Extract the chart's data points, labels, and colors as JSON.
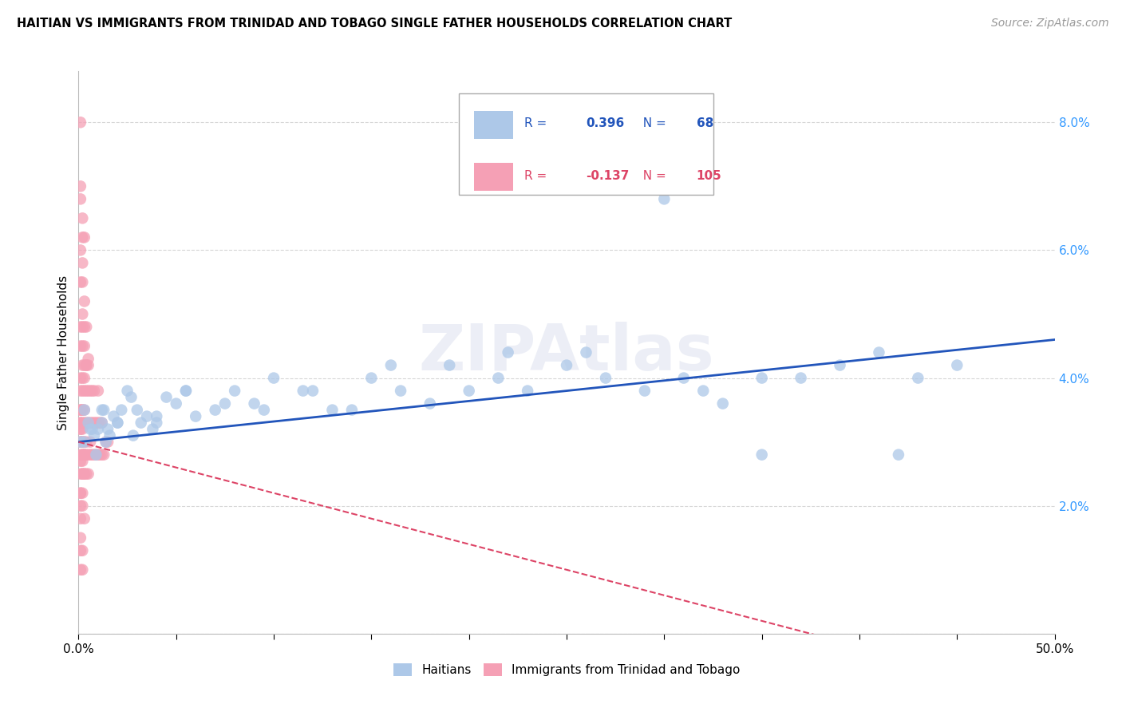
{
  "title": "HAITIAN VS IMMIGRANTS FROM TRINIDAD AND TOBAGO SINGLE FATHER HOUSEHOLDS CORRELATION CHART",
  "source": "Source: ZipAtlas.com",
  "ylabel": "Single Father Households",
  "xlim": [
    0,
    0.5
  ],
  "ylim": [
    0,
    0.088
  ],
  "blue_R": 0.396,
  "blue_N": 68,
  "pink_R": -0.137,
  "pink_N": 105,
  "blue_color": "#adc8e8",
  "pink_color": "#f5a0b5",
  "blue_line_color": "#2255bb",
  "pink_line_color": "#dd4466",
  "legend_label_blue": "Haitians",
  "legend_label_pink": "Immigrants from Trinidad and Tobago",
  "watermark": "ZIPAtlas",
  "blue_points_x": [
    0.001,
    0.003,
    0.005,
    0.007,
    0.008,
    0.009,
    0.01,
    0.012,
    0.013,
    0.014,
    0.015,
    0.016,
    0.018,
    0.02,
    0.022,
    0.025,
    0.027,
    0.03,
    0.032,
    0.035,
    0.038,
    0.04,
    0.045,
    0.05,
    0.055,
    0.06,
    0.07,
    0.08,
    0.09,
    0.1,
    0.115,
    0.13,
    0.15,
    0.165,
    0.18,
    0.2,
    0.215,
    0.23,
    0.25,
    0.27,
    0.29,
    0.31,
    0.32,
    0.33,
    0.35,
    0.37,
    0.39,
    0.41,
    0.43,
    0.45,
    0.003,
    0.006,
    0.012,
    0.02,
    0.028,
    0.04,
    0.055,
    0.075,
    0.095,
    0.12,
    0.14,
    0.16,
    0.19,
    0.22,
    0.26,
    0.3,
    0.35,
    0.42
  ],
  "blue_points_y": [
    0.03,
    0.035,
    0.033,
    0.032,
    0.031,
    0.028,
    0.032,
    0.033,
    0.035,
    0.03,
    0.032,
    0.031,
    0.034,
    0.033,
    0.035,
    0.038,
    0.037,
    0.035,
    0.033,
    0.034,
    0.032,
    0.034,
    0.037,
    0.036,
    0.038,
    0.034,
    0.035,
    0.038,
    0.036,
    0.04,
    0.038,
    0.035,
    0.04,
    0.038,
    0.036,
    0.038,
    0.04,
    0.038,
    0.042,
    0.04,
    0.038,
    0.04,
    0.038,
    0.036,
    0.04,
    0.04,
    0.042,
    0.044,
    0.04,
    0.042,
    0.03,
    0.032,
    0.035,
    0.033,
    0.031,
    0.033,
    0.038,
    0.036,
    0.035,
    0.038,
    0.035,
    0.042,
    0.042,
    0.044,
    0.044,
    0.068,
    0.028,
    0.028
  ],
  "pink_points_x": [
    0.001,
    0.001,
    0.001,
    0.001,
    0.001,
    0.001,
    0.001,
    0.001,
    0.001,
    0.001,
    0.002,
    0.002,
    0.002,
    0.002,
    0.002,
    0.002,
    0.002,
    0.002,
    0.002,
    0.002,
    0.003,
    0.003,
    0.003,
    0.003,
    0.003,
    0.003,
    0.003,
    0.003,
    0.004,
    0.004,
    0.004,
    0.004,
    0.004,
    0.004,
    0.005,
    0.005,
    0.005,
    0.005,
    0.005,
    0.006,
    0.006,
    0.006,
    0.006,
    0.007,
    0.007,
    0.007,
    0.008,
    0.008,
    0.008,
    0.009,
    0.009,
    0.01,
    0.01,
    0.01,
    0.011,
    0.011,
    0.012,
    0.012,
    0.013,
    0.014,
    0.015,
    0.001,
    0.002,
    0.001,
    0.002,
    0.001,
    0.002,
    0.001,
    0.003,
    0.002,
    0.003,
    0.004,
    0.001,
    0.002,
    0.003,
    0.001,
    0.002,
    0.003,
    0.004,
    0.005,
    0.001,
    0.001,
    0.001,
    0.002,
    0.002,
    0.003,
    0.001,
    0.001,
    0.002,
    0.001,
    0.002,
    0.002,
    0.003,
    0.003,
    0.001,
    0.002,
    0.001,
    0.002,
    0.003,
    0.001,
    0.002,
    0.001,
    0.002,
    0.001
  ],
  "pink_points_y": [
    0.03,
    0.028,
    0.025,
    0.032,
    0.035,
    0.033,
    0.027,
    0.022,
    0.038,
    0.04,
    0.03,
    0.028,
    0.025,
    0.033,
    0.035,
    0.032,
    0.027,
    0.04,
    0.042,
    0.045,
    0.03,
    0.028,
    0.025,
    0.033,
    0.035,
    0.038,
    0.042,
    0.045,
    0.03,
    0.028,
    0.025,
    0.033,
    0.038,
    0.042,
    0.028,
    0.025,
    0.033,
    0.038,
    0.042,
    0.03,
    0.028,
    0.033,
    0.038,
    0.028,
    0.033,
    0.038,
    0.028,
    0.033,
    0.038,
    0.028,
    0.033,
    0.028,
    0.033,
    0.038,
    0.028,
    0.033,
    0.028,
    0.033,
    0.028,
    0.03,
    0.03,
    0.08,
    0.062,
    0.068,
    0.058,
    0.048,
    0.05,
    0.045,
    0.048,
    0.055,
    0.052,
    0.048,
    0.07,
    0.065,
    0.062,
    0.035,
    0.038,
    0.04,
    0.042,
    0.043,
    0.022,
    0.02,
    0.018,
    0.02,
    0.022,
    0.018,
    0.015,
    0.013,
    0.013,
    0.01,
    0.01,
    0.025,
    0.025,
    0.028,
    0.03,
    0.028,
    0.032,
    0.03,
    0.028,
    0.033,
    0.035,
    0.055,
    0.048,
    0.06
  ]
}
